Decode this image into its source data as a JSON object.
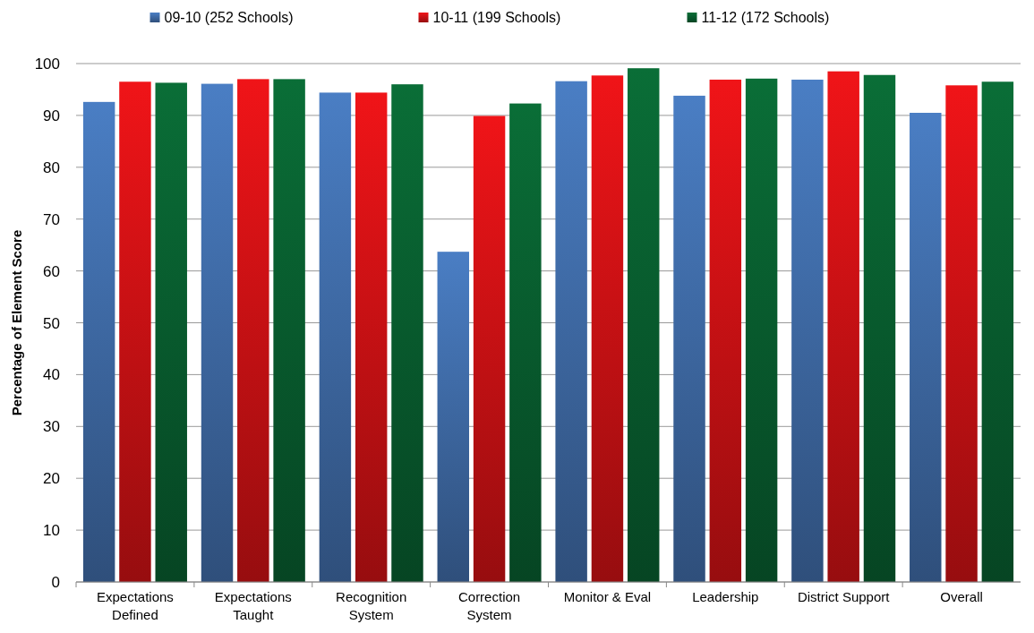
{
  "chart_data": {
    "type": "bar",
    "ylabel": "Percentage of Element Score",
    "categories": [
      "Expectations Defined",
      "Expectations Taught",
      "Recognition System",
      "Correction System",
      "Monitor & Eval",
      "Leadership",
      "District Support",
      "Overall"
    ],
    "series": [
      {
        "name": "09-10 (252 Schools)",
        "color": "#4a7ec4",
        "values": [
          92.6,
          96.1,
          94.4,
          63.7,
          96.6,
          93.8,
          96.9,
          90.5
        ]
      },
      {
        "name": "10-11 (199 Schools)",
        "color": "#f01418",
        "values": [
          96.5,
          97.0,
          94.4,
          89.9,
          97.7,
          96.9,
          98.5,
          95.8
        ]
      },
      {
        "name": "11-12 (172 Schools)",
        "color": "#0a6e37",
        "values": [
          96.3,
          97.0,
          96.0,
          92.3,
          99.1,
          97.1,
          97.8,
          96.5
        ]
      }
    ],
    "ylim": [
      0,
      100
    ],
    "yticks": [
      0,
      10,
      20,
      30,
      40,
      50,
      60,
      70,
      80,
      90,
      100
    ],
    "grid": "y",
    "legend": "top"
  }
}
